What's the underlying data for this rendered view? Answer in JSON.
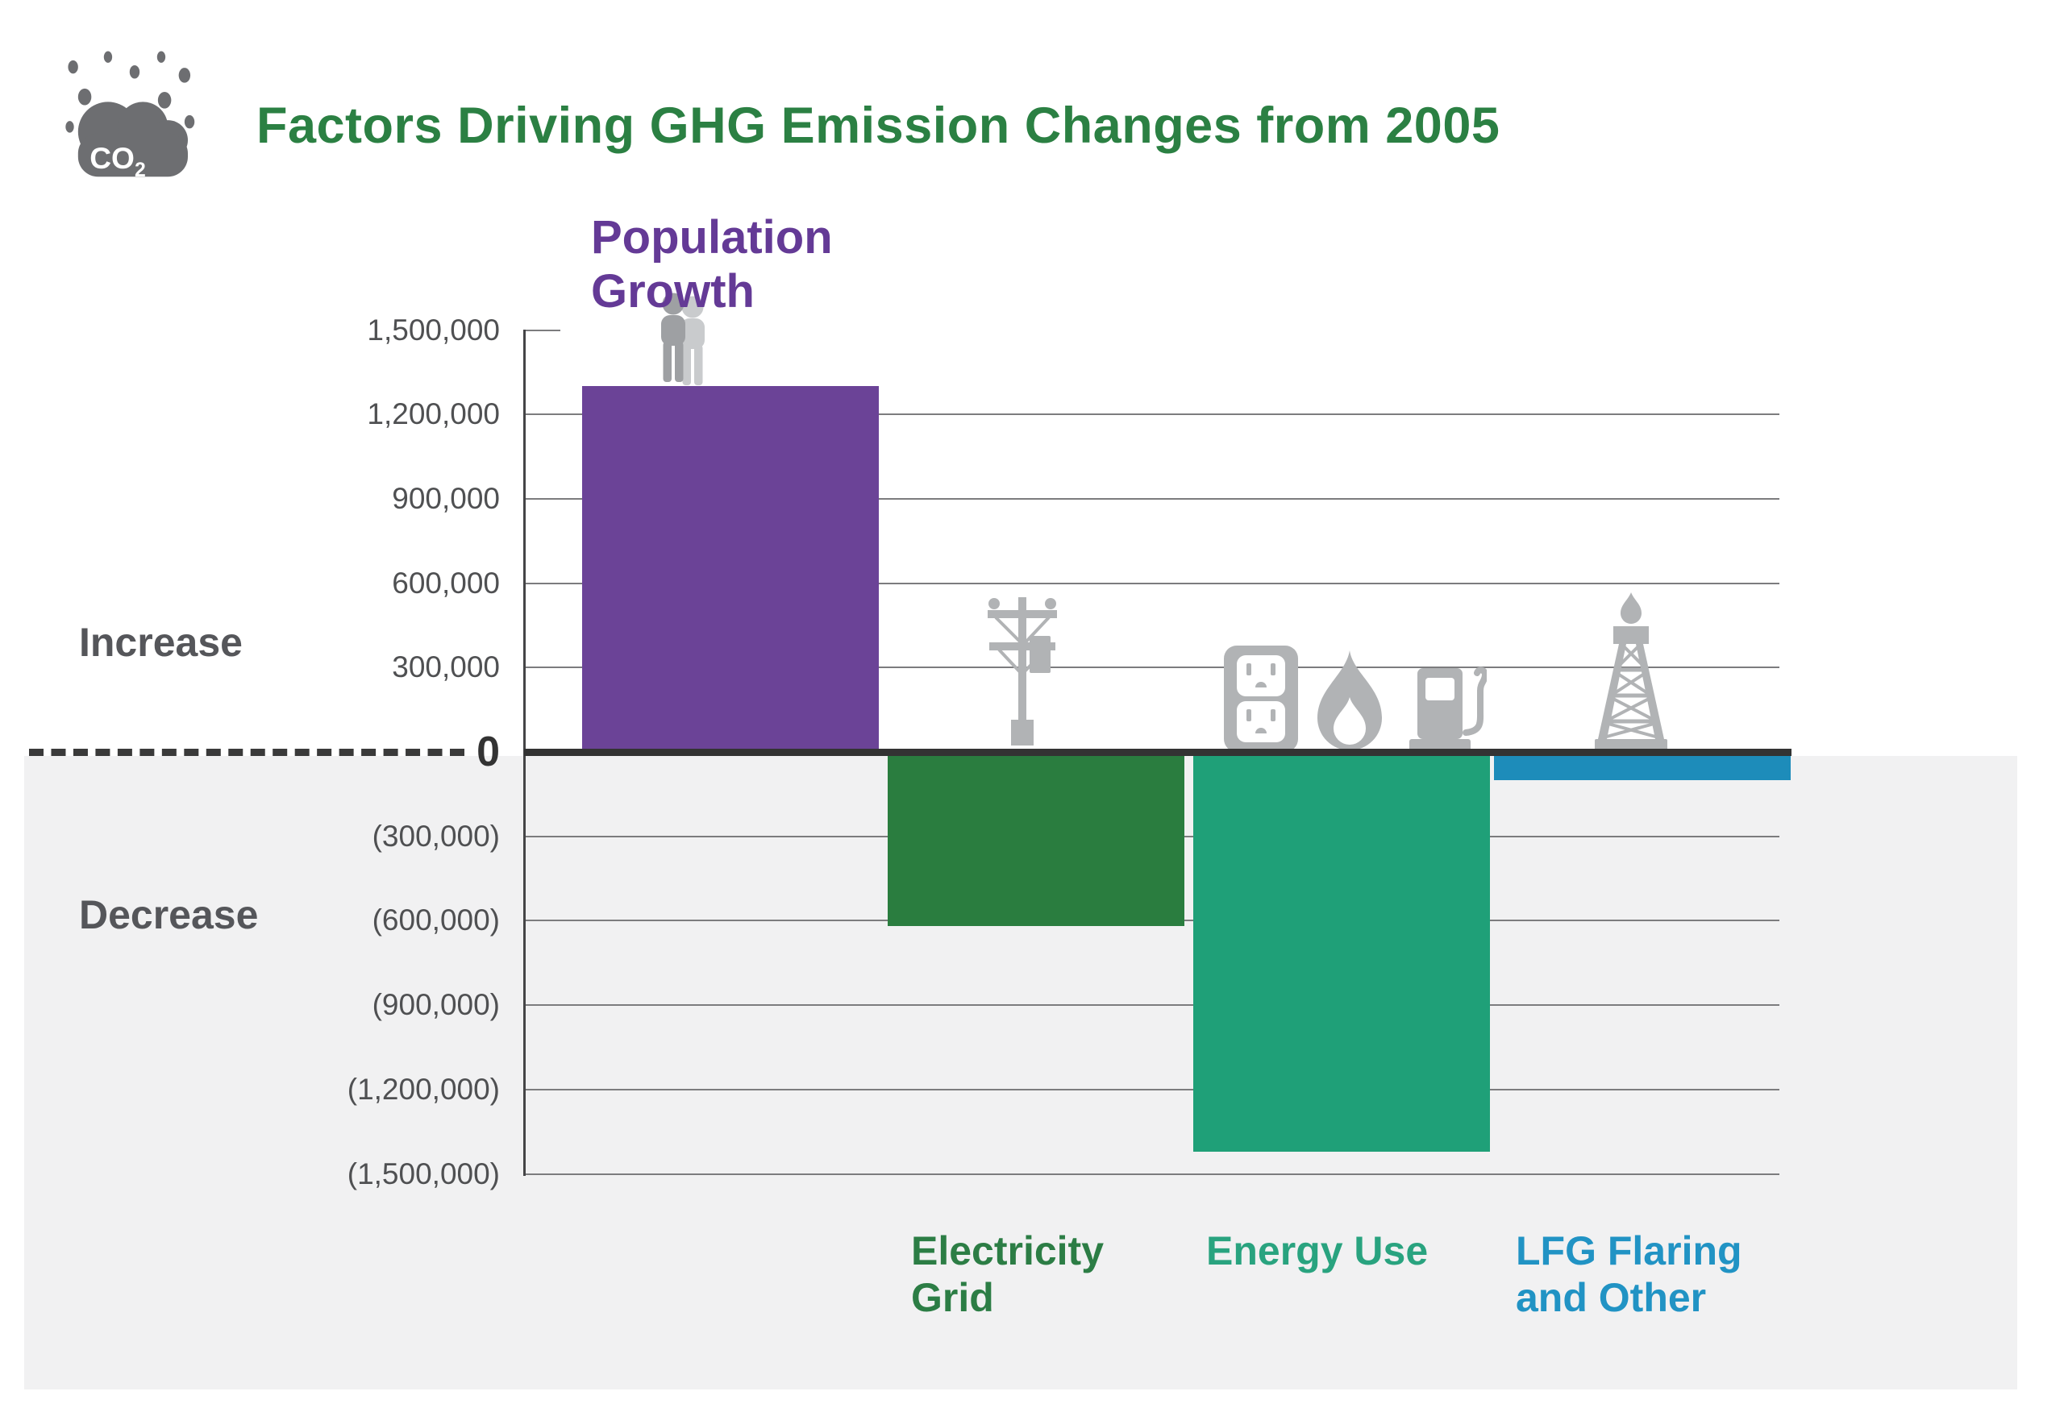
{
  "header": {
    "title": "Factors Driving GHG Emission Changes from 2005",
    "co2_badge": {
      "main": "CO",
      "sub": "2"
    }
  },
  "axis": {
    "increase_label": "Increase",
    "decrease_label": "Decrease"
  },
  "chart_data": {
    "type": "bar",
    "title": "Factors Driving GHG Emission Changes from 2005",
    "categories": [
      "Population Growth",
      "Electricity Grid",
      "Energy Use",
      "LFG Flaring and Other"
    ],
    "categories_lines": [
      [
        "Population",
        "Growth"
      ],
      [
        "Electricity",
        "Grid"
      ],
      [
        "Energy Use"
      ],
      [
        "LFG Flaring",
        "and Other"
      ]
    ],
    "values": [
      1300000,
      -620000,
      -1420000,
      -100000
    ],
    "bar_colors": [
      "#6b4397",
      "#2a7d3f",
      "#1fa078",
      "#1d8cba"
    ],
    "label_colors": [
      "#643a96",
      "#2c7d45",
      "#29a37f",
      "#2193c4"
    ],
    "category_icons": [
      [
        "people-icon"
      ],
      [
        "power-pole-icon"
      ],
      [
        "outlet-icon",
        "flame-icon",
        "gas-pump-icon"
      ],
      [
        "flare-tower-icon"
      ]
    ],
    "y_ticks": [
      {
        "value": 1500000,
        "label": "1,500,000"
      },
      {
        "value": 1200000,
        "label": "1,200,000"
      },
      {
        "value": 900000,
        "label": "900,000"
      },
      {
        "value": 600000,
        "label": "600,000"
      },
      {
        "value": 300000,
        "label": "300,000"
      },
      {
        "value": 0,
        "label": "0"
      },
      {
        "value": -300000,
        "label": "(300,000)"
      },
      {
        "value": -600000,
        "label": "(600,000)"
      },
      {
        "value": -900000,
        "label": "(900,000)"
      },
      {
        "value": -1200000,
        "label": "(1,200,000)"
      },
      {
        "value": -1500000,
        "label": "(1,500,000)"
      }
    ],
    "ylim": [
      -1500000,
      1500000
    ],
    "grid": true,
    "legend": false,
    "annotations": {
      "increase": "Increase",
      "decrease": "Decrease",
      "zero_label": "0"
    },
    "colors": {
      "title_green": "#2b8043",
      "negative_panel_bg": "#f1f1f2",
      "zero_line": "#333333",
      "gridline": "#7c7c7e",
      "icon_gray": "#b1b3b5",
      "cloud_gray": "#6d6e71",
      "tick_text": "#4f5052",
      "side_label_text": "#55565a"
    }
  }
}
